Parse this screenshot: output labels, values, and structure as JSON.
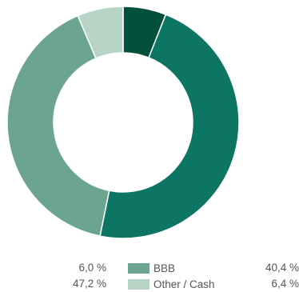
{
  "chart_data": {
    "type": "pie",
    "donut": true,
    "slices": [
      {
        "value": 6.0,
        "color": "#024f3c"
      },
      {
        "value": 47.2,
        "color": "#0d7563"
      },
      {
        "value": 40.4,
        "color": "#6ba48f",
        "label": "BBB"
      },
      {
        "value": 6.4,
        "color": "#b7d4c7",
        "label": "Other / Cash"
      }
    ],
    "value_texts": [
      "6,0 %",
      "47,2 %",
      "40,4 %",
      "6,4 %"
    ],
    "legend": [
      {
        "label": "BBB",
        "color": "#6ba48f"
      },
      {
        "label": "Other / Cash",
        "color": "#b7d4c7"
      }
    ]
  }
}
